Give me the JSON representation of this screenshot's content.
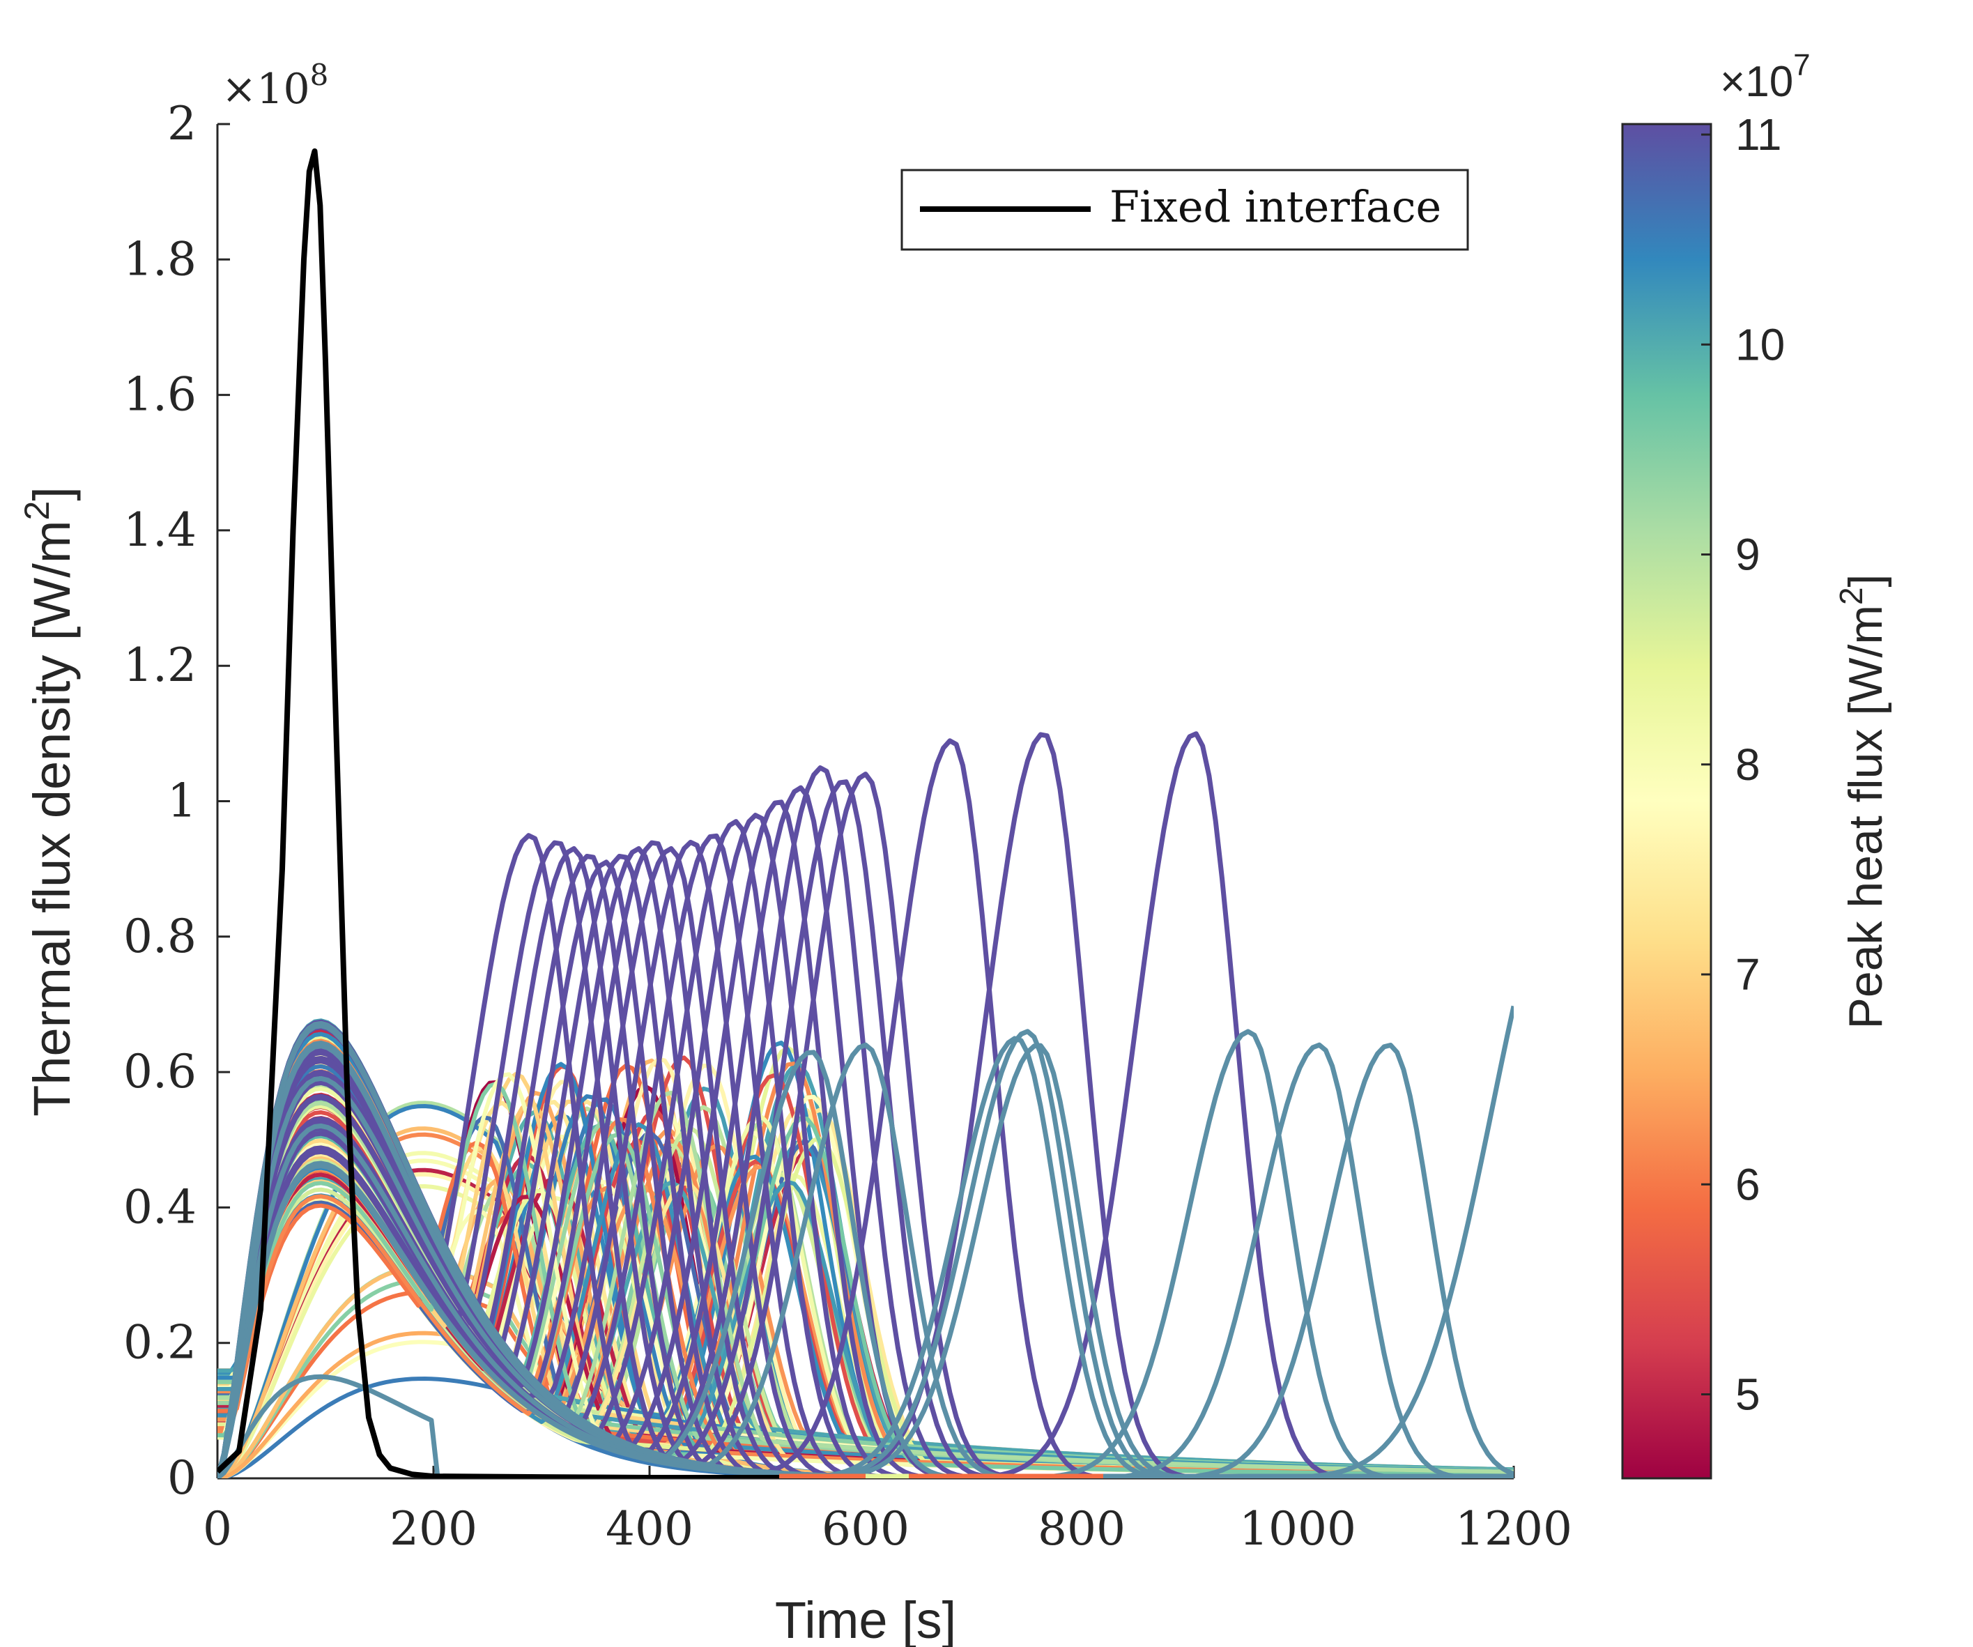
{
  "chart_data": {
    "type": "line",
    "xlabel": "Time [s]",
    "ylabel": "Thermal flux density [W/m",
    "ylabel_sup": "2",
    "ylabel_close": "]",
    "xlim": [
      0,
      1200
    ],
    "ylim": [
      0,
      2
    ],
    "y_multiplier": "×10",
    "y_multiplier_exp": "8",
    "x_ticks": [
      "0",
      "200",
      "400",
      "600",
      "800",
      "1000",
      "1200"
    ],
    "y_ticks": [
      "0",
      "0.2",
      "0.4",
      "0.6",
      "0.8",
      "1",
      "1.2",
      "1.4",
      "1.6",
      "1.8",
      "2"
    ],
    "grid": false,
    "legend_position": "top-right",
    "legend": [
      {
        "name": "Fixed interface",
        "color": "#000000"
      }
    ],
    "colorbar": {
      "label": "Peak heat flux [W/m",
      "label_sup": "2",
      "label_close": "]",
      "multiplier": "×10",
      "multiplier_exp": "7",
      "range": [
        4.6,
        11.05
      ],
      "ticks": [
        "5",
        "6",
        "7",
        "8",
        "9",
        "10",
        "11"
      ],
      "colormap": "Spectral",
      "colors": [
        "#9e0142",
        "#d53e4f",
        "#f46d43",
        "#fdae61",
        "#fee08b",
        "#ffffbf",
        "#e6f598",
        "#abdda4",
        "#66c2a5",
        "#3288bd",
        "#5e4fa2"
      ]
    },
    "fixed_interface": {
      "name": "Fixed interface",
      "color": "#000000",
      "peak_time": 90,
      "peak_value": 1.96,
      "x": [
        0,
        20,
        40,
        60,
        70,
        80,
        85,
        90,
        95,
        100,
        110,
        120,
        130,
        140,
        150,
        160,
        180,
        200,
        300,
        400,
        500,
        520
      ],
      "y": [
        0.01,
        0.04,
        0.25,
        0.9,
        1.4,
        1.8,
        1.93,
        1.96,
        1.88,
        1.65,
        1.1,
        0.58,
        0.25,
        0.09,
        0.035,
        0.015,
        0.006,
        0.003,
        0.002,
        0.001,
        0.001,
        0.001
      ]
    },
    "series_groups": [
      {
        "group": "peaked_high",
        "color": "#5e4fa2",
        "peak_heat_flux": 11.0,
        "peak_times": [
          290,
          315,
          330,
          345,
          360,
          375,
          390,
          405,
          420,
          440,
          460,
          480,
          500,
          520,
          540,
          560,
          580,
          600,
          680,
          765,
          905
        ],
        "peak_values": [
          0.95,
          0.94,
          0.93,
          0.92,
          0.91,
          0.92,
          0.93,
          0.94,
          0.93,
          0.94,
          0.95,
          0.97,
          0.98,
          1.0,
          1.02,
          1.05,
          1.03,
          1.04,
          1.09,
          1.1,
          1.1
        ]
      },
      {
        "group": "peaked_mid",
        "color": "#5b8fa6",
        "peak_heat_flux": 10.2,
        "peak_times": [
          550,
          600,
          740,
          750,
          760,
          955,
          1020,
          1085
        ],
        "peak_values": [
          0.63,
          0.64,
          0.65,
          0.66,
          0.64,
          0.66,
          0.64,
          0.64
        ]
      },
      {
        "group": "early_peak",
        "peak_time": 95,
        "peak_value_range": [
          0.1,
          0.68
        ]
      },
      {
        "group": "dual_peak",
        "second_peak_time_range": [
          240,
          560
        ],
        "second_peak_value_range": [
          0.4,
          0.6
        ]
      }
    ]
  }
}
